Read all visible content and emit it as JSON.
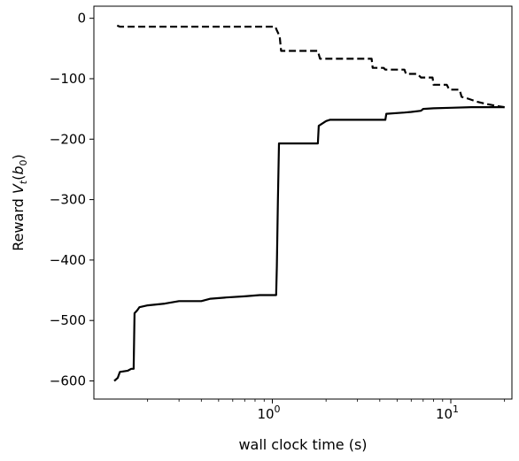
{
  "chart_data": {
    "type": "line",
    "xlabel": "wall clock time (s)",
    "ylabel_prefix": "Reward ",
    "ylabel_var": "V",
    "ylabel_sub": "t",
    "ylabel_open": "(",
    "ylabel_arg": "b",
    "ylabel_arg_sub": "0",
    "ylabel_close": ")",
    "x_scale": "log",
    "xlim": [
      0.1,
      22
    ],
    "ylim": [
      -630,
      20
    ],
    "y_ticks": [
      0,
      -100,
      -200,
      -300,
      -400,
      -500,
      -600
    ],
    "y_tick_labels": [
      "0",
      "−100",
      "−200",
      "−300",
      "−400",
      "−500",
      "−600"
    ],
    "x_major_ticks": [
      {
        "base": "10",
        "exp": "0",
        "value": 1
      },
      {
        "base": "10",
        "exp": "1",
        "value": 10
      }
    ],
    "grid": false,
    "series": [
      {
        "style": "solid",
        "color": "#000000",
        "points": [
          [
            0.13,
            -600
          ],
          [
            0.136,
            -595
          ],
          [
            0.14,
            -585
          ],
          [
            0.155,
            -583
          ],
          [
            0.162,
            -580
          ],
          [
            0.167,
            -580
          ],
          [
            0.169,
            -488
          ],
          [
            0.175,
            -483
          ],
          [
            0.18,
            -478
          ],
          [
            0.2,
            -475
          ],
          [
            0.25,
            -472
          ],
          [
            0.3,
            -468
          ],
          [
            0.4,
            -468
          ],
          [
            0.45,
            -464
          ],
          [
            0.55,
            -462
          ],
          [
            0.7,
            -460
          ],
          [
            0.85,
            -458
          ],
          [
            1.05,
            -458
          ],
          [
            1.06,
            -410
          ],
          [
            1.075,
            -300
          ],
          [
            1.09,
            -207
          ],
          [
            1.2,
            -207
          ],
          [
            1.8,
            -207
          ],
          [
            1.82,
            -178
          ],
          [
            2.0,
            -170
          ],
          [
            2.1,
            -168
          ],
          [
            4.3,
            -168
          ],
          [
            4.35,
            -158
          ],
          [
            5.5,
            -156
          ],
          [
            6.0,
            -155
          ],
          [
            6.8,
            -153
          ],
          [
            7.0,
            -150
          ],
          [
            8.0,
            -149
          ],
          [
            10.0,
            -148
          ],
          [
            13.0,
            -147
          ],
          [
            20.0,
            -147
          ]
        ]
      },
      {
        "style": "dashed",
        "color": "#000000",
        "points": [
          [
            0.135,
            -12
          ],
          [
            0.14,
            -14
          ],
          [
            0.5,
            -14
          ],
          [
            1.04,
            -14
          ],
          [
            1.06,
            -20
          ],
          [
            1.1,
            -30
          ],
          [
            1.12,
            -54
          ],
          [
            1.3,
            -54
          ],
          [
            1.8,
            -54
          ],
          [
            1.85,
            -67
          ],
          [
            2.5,
            -67
          ],
          [
            3.6,
            -67
          ],
          [
            3.65,
            -82
          ],
          [
            4.2,
            -82
          ],
          [
            4.3,
            -85
          ],
          [
            5.5,
            -85
          ],
          [
            5.6,
            -92
          ],
          [
            6.5,
            -92
          ],
          [
            6.8,
            -98
          ],
          [
            7.9,
            -98
          ],
          [
            8.0,
            -110
          ],
          [
            9.5,
            -110
          ],
          [
            9.8,
            -118
          ],
          [
            11.2,
            -118
          ],
          [
            11.5,
            -130
          ],
          [
            12.5,
            -133
          ],
          [
            14.0,
            -138
          ],
          [
            16.0,
            -142
          ],
          [
            18.0,
            -145
          ],
          [
            20.0,
            -147
          ]
        ]
      }
    ]
  }
}
